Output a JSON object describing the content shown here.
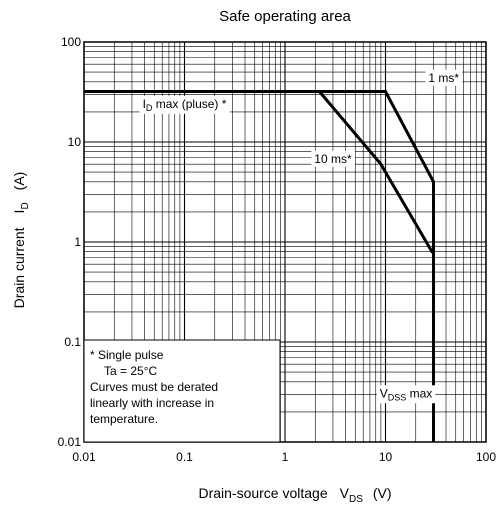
{
  "chart_data": {
    "type": "line",
    "title": "Safe operating area",
    "xlabel": "Drain-source voltage",
    "xlabel_symbol": "V",
    "xlabel_subscript": "DS",
    "xlabel_unit": "(V)",
    "ylabel": "Drain current",
    "ylabel_symbol": "I",
    "ylabel_subscript": "D",
    "ylabel_unit": "(A)",
    "x_scale": "log",
    "y_scale": "log",
    "xlim": [
      0.01,
      100
    ],
    "ylim": [
      0.01,
      100
    ],
    "grid": true,
    "x_ticks": [
      {
        "value": 0.01,
        "label": "0.01"
      },
      {
        "value": 0.1,
        "label": "0.1"
      },
      {
        "value": 1,
        "label": "1"
      },
      {
        "value": 10,
        "label": "10"
      },
      {
        "value": 100,
        "label": "100"
      }
    ],
    "y_ticks": [
      {
        "value": 0.01,
        "label": "0.01"
      },
      {
        "value": 0.1,
        "label": "0.1"
      },
      {
        "value": 1,
        "label": "1"
      },
      {
        "value": 10,
        "label": "10"
      },
      {
        "value": 100,
        "label": "100"
      }
    ],
    "series": [
      {
        "name": "1 ms*",
        "points": [
          [
            0.01,
            32
          ],
          [
            10,
            32
          ],
          [
            30,
            4
          ],
          [
            30,
            0.01
          ]
        ]
      },
      {
        "name": "10 ms*",
        "points": [
          [
            2.2,
            32
          ],
          [
            9,
            6
          ],
          [
            29,
            0.8
          ],
          [
            30,
            0.8
          ]
        ]
      }
    ],
    "annotations": [
      {
        "id": "id-max",
        "text": "I",
        "sub": "D",
        "rest": " max (pluse) *",
        "x": 0.1,
        "y": 22
      },
      {
        "id": "1ms",
        "text": "1 ms*",
        "x": 38,
        "y": 40
      },
      {
        "id": "10ms",
        "text": "10 ms*",
        "x": 3.0,
        "y": 6.2
      },
      {
        "id": "vdss",
        "text": "V",
        "sub": "DSS",
        "rest": " max",
        "x": 16,
        "y": 0.028
      }
    ],
    "note": {
      "lines": [
        "*  Single pulse",
        "Ta = 25°C",
        "Curves must be derated",
        "linearly with increase in",
        "temperature."
      ]
    },
    "line_color": "#000000"
  }
}
